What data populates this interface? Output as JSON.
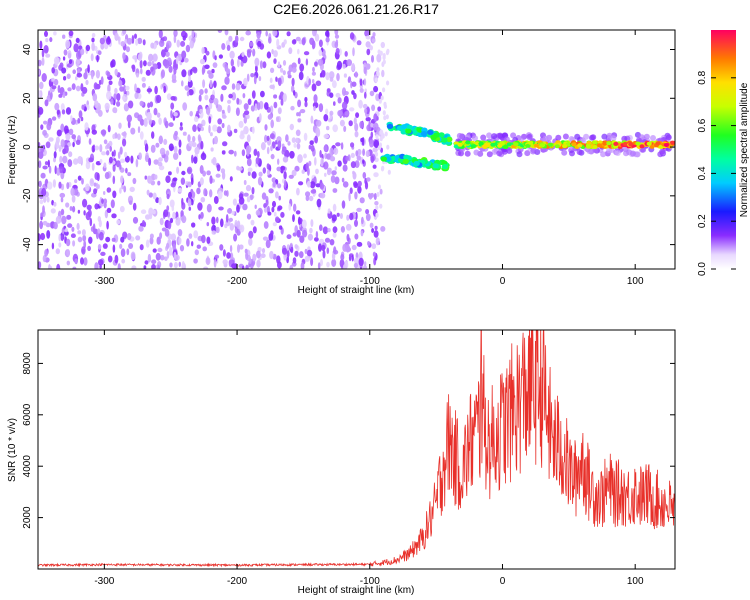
{
  "figure": {
    "title": "C2E6.2026.061.21.26.R17"
  },
  "colors": {
    "spectral_points": "#7a1ff0",
    "snr_line": "#e8302a",
    "axes": "#000000"
  },
  "chart_data": [
    {
      "type": "heatmap",
      "title": "C2E6.2026.061.21.26.R17",
      "xlabel": "Height of straight line (km)",
      "ylabel": "Frequency (Hz)",
      "xlim": [
        -350,
        130
      ],
      "ylim": [
        -50,
        48
      ],
      "xticks": [
        -300,
        -200,
        -100,
        0,
        100
      ],
      "yticks": [
        -40,
        -20,
        0,
        20,
        40
      ],
      "colorbar": {
        "label": "Normalized spectral amplitude",
        "range": [
          0,
          1
        ],
        "ticks": [
          0,
          0.2,
          0.4,
          0.6,
          0.8
        ],
        "tick_labels": [
          "0.0",
          "0.2",
          "0.4",
          "0.6",
          "0.8"
        ],
        "colormap": "rainbow"
      },
      "regions": [
        {
          "name": "broadband noise",
          "x": [
            -350,
            -90
          ],
          "y": [
            -50,
            48
          ],
          "amplitude": 0.15
        },
        {
          "name": "upper branch",
          "x": [
            -85,
            -40
          ],
          "y_start": 9,
          "y_end": 3,
          "amplitude": 0.5
        },
        {
          "name": "lower branch",
          "x": [
            -90,
            -40
          ],
          "y_start": -4,
          "y_end": -8,
          "amplitude": 0.5
        },
        {
          "name": "steady signal",
          "x": [
            -35,
            130
          ],
          "y": [
            0,
            2
          ],
          "amplitude": 0.9
        }
      ],
      "grid": false
    },
    {
      "type": "line",
      "xlabel": "Height of straight line (km)",
      "ylabel": "SNR (10 * v/v)",
      "xlim": [
        -350,
        130
      ],
      "ylim": [
        0,
        9300
      ],
      "xticks": [
        -300,
        -200,
        -100,
        0,
        100
      ],
      "yticks": [
        2000,
        4000,
        6000,
        8000
      ],
      "x": [
        -350,
        -300,
        -250,
        -200,
        -150,
        -100,
        -90,
        -80,
        -70,
        -60,
        -50,
        -45,
        -40,
        -35,
        -30,
        -25,
        -20,
        -15,
        -10,
        -5,
        0,
        5,
        10,
        15,
        20,
        25,
        30,
        35,
        40,
        45,
        50,
        55,
        60,
        65,
        70,
        75,
        80,
        85,
        90,
        95,
        100,
        105,
        110,
        115,
        120,
        125,
        130
      ],
      "y": [
        150,
        170,
        160,
        150,
        170,
        180,
        250,
        350,
        600,
        1200,
        2500,
        4000,
        5000,
        4200,
        3800,
        4800,
        5200,
        6000,
        4800,
        5200,
        5500,
        5900,
        6300,
        6700,
        7000,
        7200,
        7100,
        5600,
        4800,
        4700,
        3800,
        3500,
        4300,
        3300,
        2900,
        2800,
        3200,
        2900,
        3000,
        2800,
        3000,
        2800,
        2900,
        2700,
        2600,
        2500,
        2200
      ],
      "peak": {
        "x": -16,
        "y": 9300
      },
      "grid": false
    }
  ]
}
